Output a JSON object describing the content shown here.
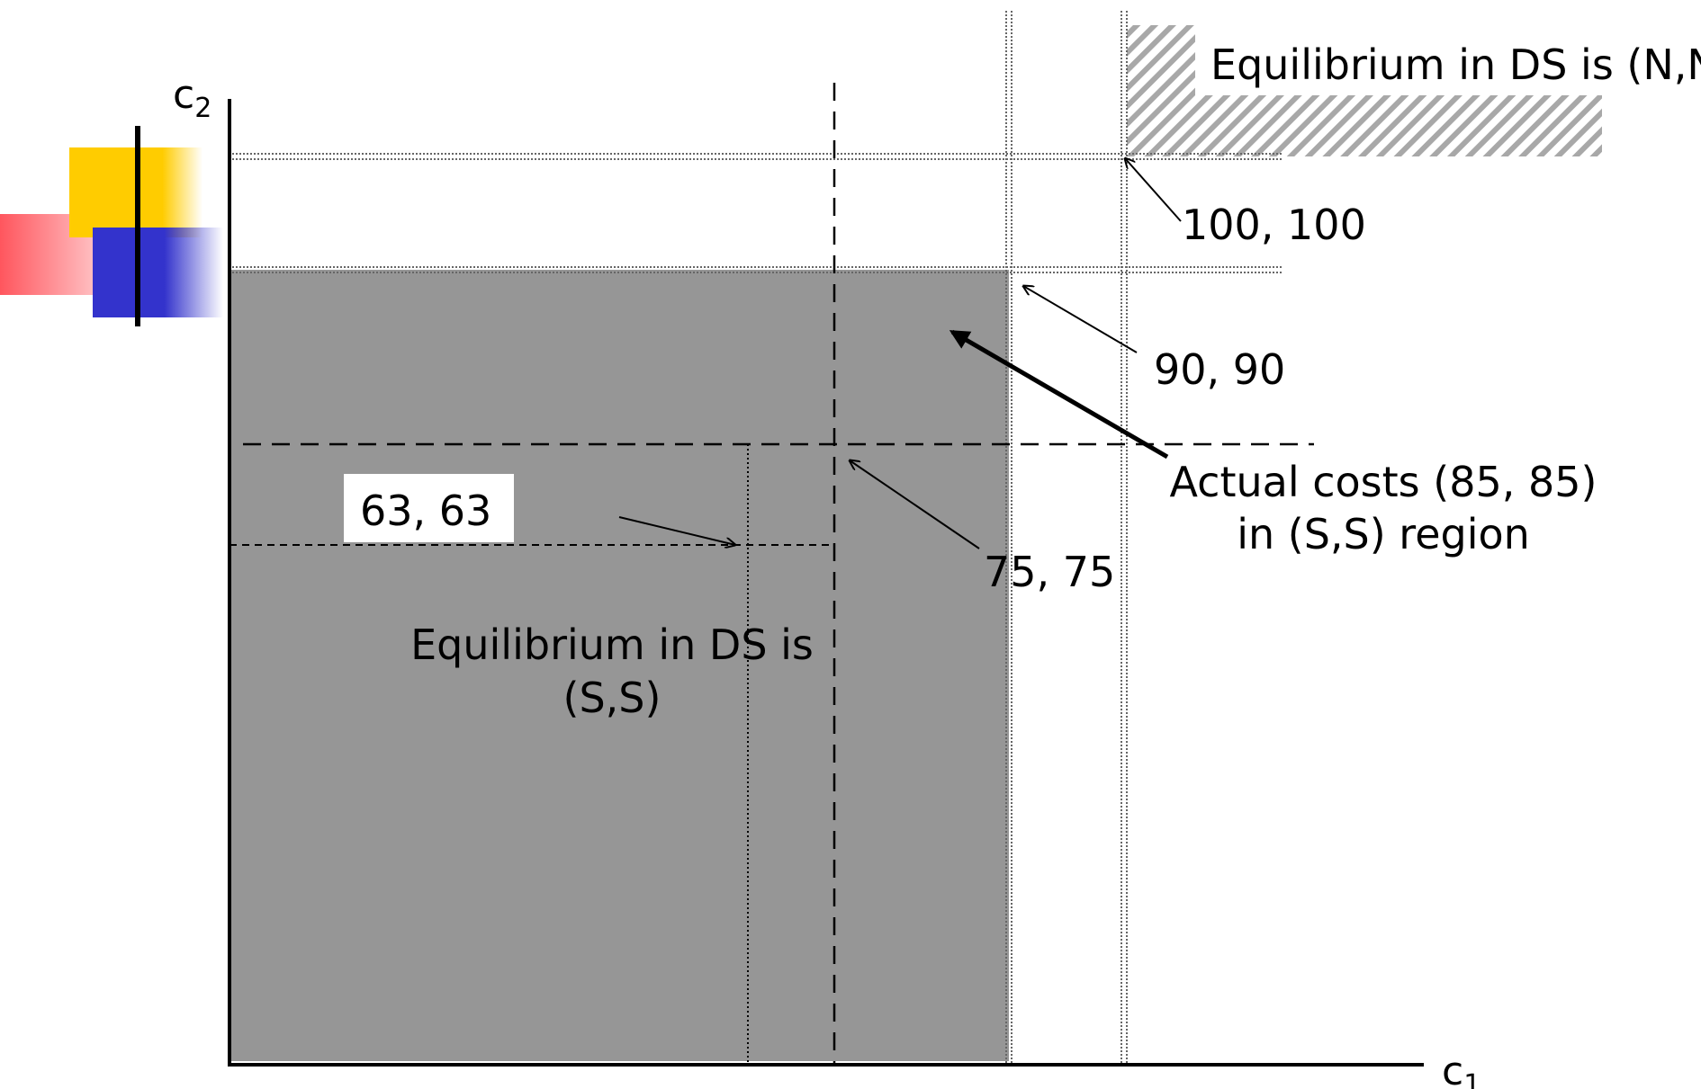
{
  "axes": {
    "x_label": "c",
    "x_subscript": "1",
    "y_label": "c",
    "y_subscript": "2"
  },
  "regions": {
    "ss_region": {
      "label_line1": "Equilibrium in DS is",
      "label_line2": "(S,S)",
      "color": "#969696"
    },
    "nn_region": {
      "label": "Equilibrium in DS is (N,N)",
      "color": "#a8a8a8"
    }
  },
  "points": {
    "p63": {
      "label": "63,  63"
    },
    "p75": {
      "label": "75, 75"
    },
    "p90": {
      "label": "90, 90"
    },
    "p100": {
      "label": "100, 100"
    }
  },
  "actual_costs": {
    "line1": "Actual costs (85, 85)",
    "line2": "in (S,S) region"
  },
  "logo": {
    "colors": {
      "yellow": "#ffcc00",
      "red": "#ff4d55",
      "blue": "#3333cc",
      "bar": "#000000"
    }
  }
}
